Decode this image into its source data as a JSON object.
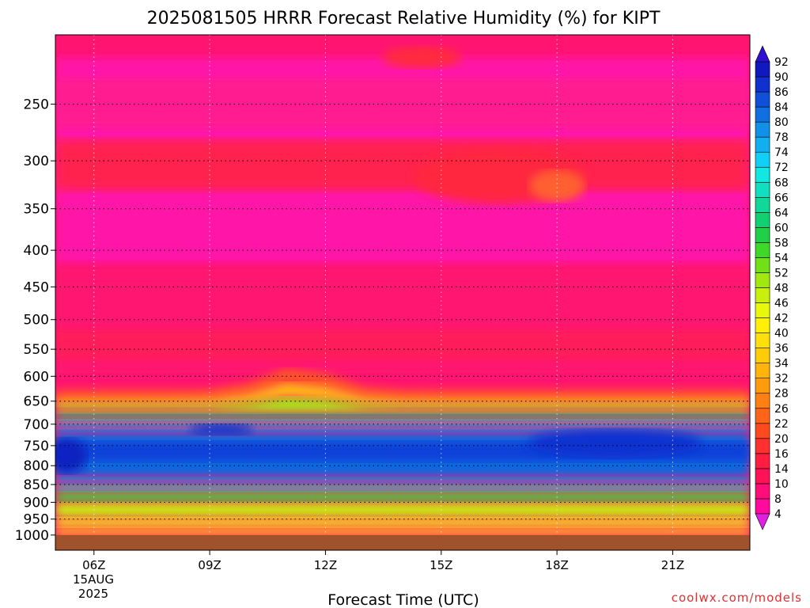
{
  "chart_data": {
    "type": "heatmap",
    "title": "2025081505 HRRR Forecast Relative Humidity (%) for KIPT",
    "xlabel": "Forecast Time (UTC)",
    "ylabel": "",
    "x_range_hours": [
      5.0,
      23.0
    ],
    "y_scale": "log-pressure",
    "y_range_hPa": [
      1050,
      200
    ],
    "x_ticks": [
      {
        "hour": 6,
        "label": "06Z"
      },
      {
        "hour": 9,
        "label": "09Z"
      },
      {
        "hour": 12,
        "label": "12Z"
      },
      {
        "hour": 15,
        "label": "15Z"
      },
      {
        "hour": 18,
        "label": "18Z"
      },
      {
        "hour": 21,
        "label": "21Z"
      }
    ],
    "date_label_line1": "15AUG",
    "date_label_line2": "2025",
    "y_ticks": [
      250,
      300,
      350,
      400,
      450,
      500,
      550,
      600,
      650,
      700,
      750,
      800,
      850,
      900,
      950,
      1000
    ],
    "ground_level_hPa": 1000,
    "ground_color": "#a0522d",
    "x_grid_hours": [
      6,
      9,
      12,
      15,
      18,
      21
    ],
    "grid": true,
    "colorbar": {
      "placement": "right",
      "levels": [
        4,
        8,
        10,
        14,
        16,
        20,
        22,
        26,
        28,
        32,
        34,
        36,
        40,
        42,
        46,
        48,
        52,
        54,
        58,
        60,
        64,
        66,
        68,
        72,
        74,
        78,
        80,
        84,
        86,
        90,
        92
      ],
      "colors": [
        "#f010d0",
        "#ff0a9c",
        "#ff0e78",
        "#ff1256",
        "#ff1e40",
        "#ff3030",
        "#ff4a20",
        "#ff6418",
        "#ff8012",
        "#ff9c0e",
        "#ffb40c",
        "#ffcc0a",
        "#ffe00a",
        "#fff00a",
        "#e8f80a",
        "#c8f00c",
        "#a0e810",
        "#70e018",
        "#40d828",
        "#20d048",
        "#10d070",
        "#10d898",
        "#10e0c0",
        "#10e8e0",
        "#10d0f8",
        "#10b0f0",
        "#1090e8",
        "#1070e0",
        "#1050d8",
        "#1030d0",
        "#1018c0",
        "#3010e0"
      ],
      "under_color": "#e020e0",
      "over_color": "#3010d0"
    },
    "credit": "coolwx.com/models"
  }
}
